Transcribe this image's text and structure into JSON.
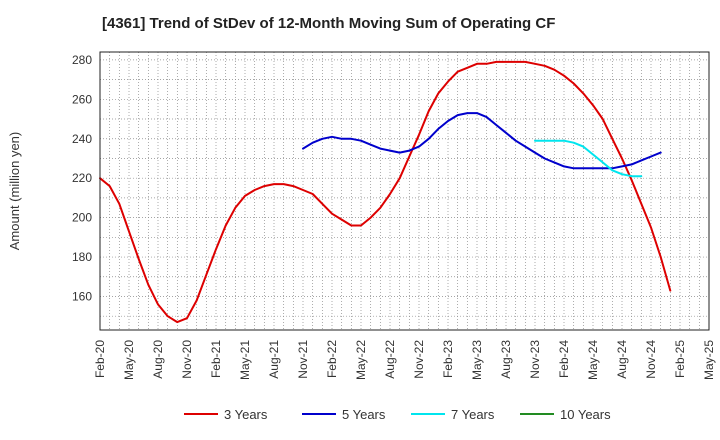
{
  "chart_data": {
    "type": "line",
    "title": "[4361]  Trend of StDev of 12-Month Moving Sum of Operating CF",
    "xlabel": "",
    "ylabel": "Amount (million yen)",
    "ylim": [
      143,
      284
    ],
    "yticks": [
      160,
      180,
      200,
      220,
      240,
      260,
      280
    ],
    "grid": true,
    "legend_position": "bottom",
    "x_tick_labels": [
      "Feb-20",
      "May-20",
      "Aug-20",
      "Nov-20",
      "Feb-21",
      "May-21",
      "Aug-21",
      "Nov-21",
      "Feb-22",
      "May-22",
      "Aug-22",
      "Nov-22",
      "Feb-23",
      "May-23",
      "Aug-23",
      "Nov-23",
      "Feb-24",
      "May-24",
      "Aug-24",
      "Nov-24",
      "Feb-25",
      "May-25"
    ],
    "series": [
      {
        "name": "3 Years",
        "color": "#dd0000",
        "start_index": 0,
        "values": [
          220,
          216,
          207,
          193,
          179,
          166,
          156,
          150,
          147,
          149,
          158,
          171,
          184,
          196,
          205,
          211,
          214,
          216,
          217,
          217,
          216,
          214,
          212,
          207,
          202,
          199,
          196,
          196,
          200,
          205,
          212,
          220,
          231,
          242,
          254,
          263,
          269,
          274,
          276,
          278,
          278,
          279,
          279,
          279,
          279,
          278,
          277,
          275,
          272,
          268,
          263,
          257,
          250,
          240,
          230,
          219,
          207,
          195,
          180,
          163
        ]
      },
      {
        "name": "5 Years",
        "color": "#0000cc",
        "start_index": 21,
        "values": [
          235,
          238,
          240,
          241,
          240,
          240,
          239,
          237,
          235,
          234,
          233,
          234,
          236,
          240,
          245,
          249,
          252,
          253,
          253,
          251,
          247,
          243,
          239,
          236,
          233,
          230,
          228,
          226,
          225,
          225,
          225,
          225,
          225,
          226,
          227,
          229,
          231,
          233
        ]
      },
      {
        "name": "7 Years",
        "color": "#00e5ee",
        "start_index": 45,
        "values": [
          239,
          239,
          239,
          239,
          238,
          236,
          232,
          228,
          224,
          222,
          221,
          221
        ]
      },
      {
        "name": "10 Years",
        "color": "#228b22",
        "start_index": 0,
        "values": []
      }
    ]
  }
}
